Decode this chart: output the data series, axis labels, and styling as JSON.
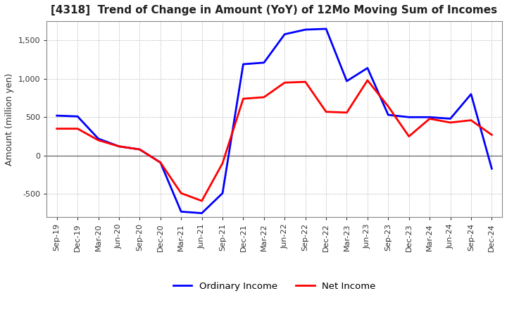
{
  "title": "[4318]  Trend of Change in Amount (YoY) of 12Mo Moving Sum of Incomes",
  "ylabel": "Amount (million yen)",
  "x_labels": [
    "Sep-19",
    "Dec-19",
    "Mar-20",
    "Jun-20",
    "Sep-20",
    "Dec-20",
    "Mar-21",
    "Jun-21",
    "Sep-21",
    "Dec-21",
    "Mar-22",
    "Jun-22",
    "Sep-22",
    "Dec-22",
    "Mar-23",
    "Jun-23",
    "Sep-23",
    "Dec-23",
    "Mar-24",
    "Jun-24",
    "Sep-24",
    "Dec-24"
  ],
  "ordinary_income": [
    520,
    510,
    220,
    120,
    80,
    -90,
    -730,
    -750,
    -490,
    1190,
    1210,
    1580,
    1640,
    1650,
    970,
    1140,
    530,
    500,
    500,
    480,
    800,
    -170
  ],
  "net_income": [
    350,
    350,
    200,
    120,
    80,
    -90,
    -490,
    -590,
    -100,
    740,
    760,
    950,
    960,
    570,
    560,
    980,
    640,
    250,
    480,
    430,
    460,
    270
  ],
  "ordinary_color": "#0000ff",
  "net_color": "#ff0000",
  "ylim": [
    -800,
    1750
  ],
  "yticks": [
    -500,
    0,
    500,
    1000,
    1500
  ],
  "background_color": "#ffffff",
  "grid_color": "#aaaaaa",
  "line_width": 2.0
}
